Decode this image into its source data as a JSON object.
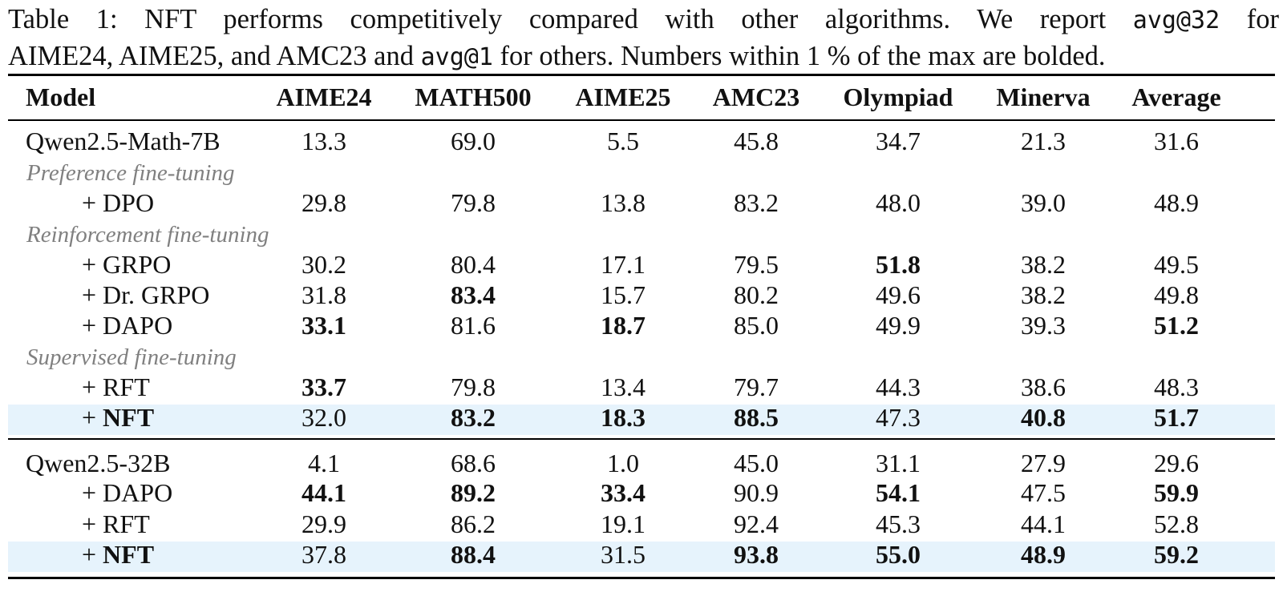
{
  "caption": {
    "line1_pre": "Table 1:  NFT performs competitively compared with other algorithms.  We report ",
    "code1": "avg@32",
    "line1_post": " for",
    "line2_pre": "AIME24, AIME25, and AMC23 and ",
    "code2": "avg@1",
    "line2_post": " for others. Numbers within 1 % of the max are bolded."
  },
  "columns": [
    "Model",
    "AIME24",
    "MATH500",
    "AIME25",
    "AMC23",
    "Olympiad",
    "Minerva",
    "Average"
  ],
  "groups": {
    "preference": "Preference fine-tuning",
    "reinforcement": "Reinforcement fine-tuning",
    "supervised": "Supervised fine-tuning"
  },
  "rows": [
    {
      "model": "Qwen2.5-Math-7B",
      "values": [
        "13.3",
        "69.0",
        "5.5",
        "45.8",
        "34.7",
        "21.3",
        "31.6"
      ]
    },
    {
      "model": "+ DPO",
      "values": [
        "29.8",
        "79.8",
        "13.8",
        "83.2",
        "48.0",
        "39.0",
        "48.9"
      ]
    },
    {
      "model": "+ GRPO",
      "values": [
        "30.2",
        "80.4",
        "17.1",
        "79.5",
        "51.8",
        "38.2",
        "49.5"
      ]
    },
    {
      "model": "+ Dr. GRPO",
      "values": [
        "31.8",
        "83.4",
        "15.7",
        "80.2",
        "49.6",
        "38.2",
        "49.8"
      ]
    },
    {
      "model": "+ DAPO",
      "values": [
        "33.1",
        "81.6",
        "18.7",
        "85.0",
        "49.9",
        "39.3",
        "51.2"
      ]
    },
    {
      "model": "+ RFT",
      "values": [
        "33.7",
        "79.8",
        "13.4",
        "79.7",
        "44.3",
        "38.6",
        "48.3"
      ]
    },
    {
      "model_prefix": "+ ",
      "model_bold": "NFT",
      "values": [
        "32.0",
        "83.2",
        "18.3",
        "88.5",
        "47.3",
        "40.8",
        "51.7"
      ]
    },
    {
      "model": "Qwen2.5-32B",
      "values": [
        "4.1",
        "68.6",
        "1.0",
        "45.0",
        "31.1",
        "27.9",
        "29.6"
      ]
    },
    {
      "model": "+ DAPO",
      "values": [
        "44.1",
        "89.2",
        "33.4",
        "90.9",
        "54.1",
        "47.5",
        "59.9"
      ]
    },
    {
      "model": "+ RFT",
      "values": [
        "29.9",
        "86.2",
        "19.1",
        "92.4",
        "45.3",
        "44.1",
        "52.8"
      ]
    },
    {
      "model_prefix": "+ ",
      "model_bold": "NFT",
      "values": [
        "37.8",
        "88.4",
        "31.5",
        "93.8",
        "55.0",
        "48.9",
        "59.2"
      ]
    }
  ],
  "bold_cells": [
    [
      2,
      4
    ],
    [
      3,
      1
    ],
    [
      4,
      0
    ],
    [
      4,
      2
    ],
    [
      4,
      6
    ],
    [
      5,
      0
    ],
    [
      6,
      1
    ],
    [
      6,
      2
    ],
    [
      6,
      3
    ],
    [
      6,
      5
    ],
    [
      6,
      6
    ],
    [
      8,
      0
    ],
    [
      8,
      1
    ],
    [
      8,
      2
    ],
    [
      8,
      4
    ],
    [
      8,
      6
    ],
    [
      10,
      1
    ],
    [
      10,
      3
    ],
    [
      10,
      4
    ],
    [
      10,
      5
    ],
    [
      10,
      6
    ]
  ],
  "highlighted_rows": [
    6,
    10
  ],
  "colors": {
    "highlight": "#e6f3fc",
    "group_label": "#808080"
  }
}
